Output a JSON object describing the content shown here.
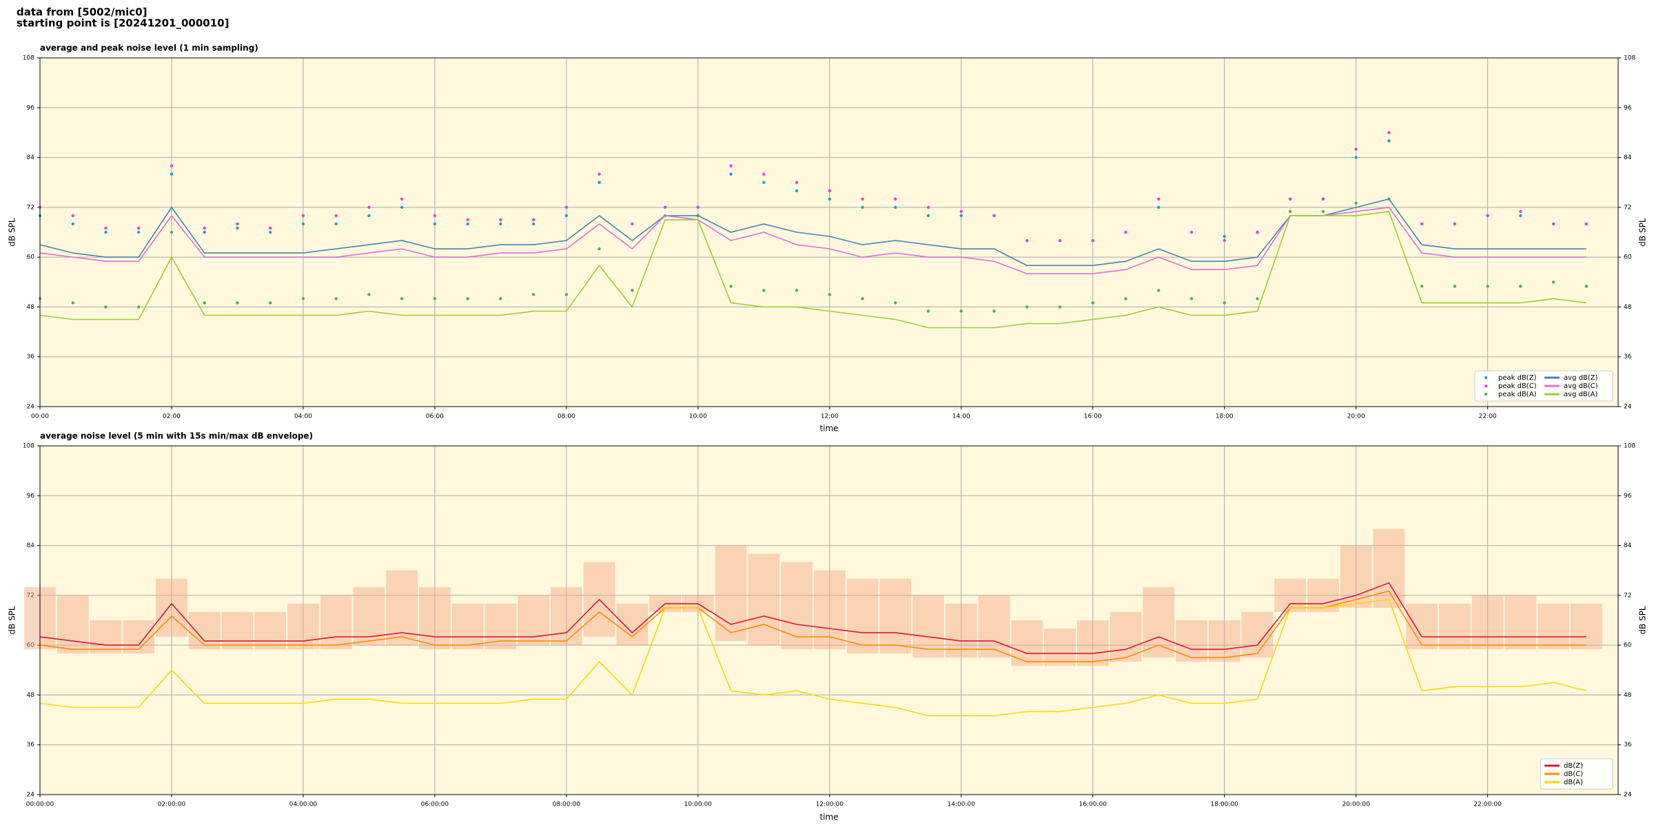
{
  "header": {
    "lines": [
      "data from [5002/mic0]",
      "starting point is [20241201_000010]"
    ]
  },
  "chart_data": [
    {
      "type": "line",
      "title": "average and peak noise level (1 min sampling)",
      "xlabel": "time",
      "ylabel": "dB SPL",
      "background": "#fff8dc",
      "grid": true,
      "legend": "lower right",
      "legend_columns": 2,
      "xlim": [
        "00:00",
        "23:59"
      ],
      "xticks": [
        "00:00",
        "02:00",
        "04:00",
        "06:00",
        "08:00",
        "10:00",
        "12:00",
        "14:00",
        "16:00",
        "18:00",
        "20:00",
        "22:00"
      ],
      "ylim": [
        24,
        108
      ],
      "yticks": [
        24,
        36,
        48,
        60,
        72,
        84,
        96,
        108
      ],
      "x": [
        "00:00",
        "00:30",
        "01:00",
        "01:30",
        "02:00",
        "02:30",
        "03:00",
        "03:30",
        "04:00",
        "04:30",
        "05:00",
        "05:30",
        "06:00",
        "06:30",
        "07:00",
        "07:30",
        "08:00",
        "08:30",
        "09:00",
        "09:30",
        "10:00",
        "10:30",
        "11:00",
        "11:30",
        "12:00",
        "12:30",
        "13:00",
        "13:30",
        "14:00",
        "14:30",
        "15:00",
        "15:30",
        "16:00",
        "16:30",
        "17:00",
        "17:30",
        "18:00",
        "18:30",
        "19:00",
        "19:30",
        "20:00",
        "20:30",
        "21:00",
        "21:30",
        "22:00",
        "22:30",
        "23:00",
        "23:30"
      ],
      "series": [
        {
          "name": "peak dB(Z)",
          "style": "scatter",
          "color": "#1f9bd6",
          "values": [
            70,
            68,
            66,
            66,
            80,
            66,
            67,
            66,
            68,
            68,
            70,
            72,
            68,
            68,
            68,
            68,
            70,
            78,
            68,
            72,
            72,
            80,
            78,
            76,
            74,
            72,
            72,
            70,
            70,
            70,
            64,
            64,
            64,
            66,
            72,
            66,
            65,
            66,
            74,
            74,
            84,
            88,
            68,
            68,
            70,
            70,
            68,
            68
          ]
        },
        {
          "name": "peak dB(C)",
          "style": "scatter",
          "color": "#e040e0",
          "values": [
            72,
            70,
            67,
            67,
            82,
            67,
            68,
            67,
            70,
            70,
            72,
            74,
            70,
            69,
            69,
            69,
            72,
            80,
            68,
            72,
            72,
            82,
            80,
            78,
            76,
            74,
            74,
            72,
            71,
            70,
            64,
            64,
            64,
            66,
            74,
            66,
            64,
            66,
            74,
            74,
            86,
            90,
            68,
            68,
            70,
            71,
            68,
            68
          ]
        },
        {
          "name": "peak dB(A)",
          "style": "scatter",
          "color": "#4caf50",
          "values": [
            50,
            49,
            48,
            48,
            66,
            49,
            49,
            49,
            50,
            50,
            51,
            50,
            50,
            50,
            50,
            51,
            51,
            62,
            52,
            70,
            70,
            53,
            52,
            52,
            51,
            50,
            49,
            47,
            47,
            47,
            48,
            48,
            49,
            50,
            52,
            50,
            49,
            50,
            71,
            71,
            73,
            74,
            53,
            53,
            53,
            53,
            54,
            53
          ]
        },
        {
          "name": "avg dB(Z)",
          "style": "line",
          "color": "#4682b4",
          "values": [
            63,
            61,
            60,
            60,
            72,
            61,
            61,
            61,
            61,
            62,
            63,
            64,
            62,
            62,
            63,
            63,
            64,
            70,
            64,
            70,
            70,
            66,
            68,
            66,
            65,
            63,
            64,
            63,
            62,
            62,
            58,
            58,
            58,
            59,
            62,
            59,
            59,
            60,
            70,
            70,
            72,
            74,
            63,
            62,
            62,
            62,
            62,
            62
          ]
        },
        {
          "name": "avg dB(C)",
          "style": "line",
          "color": "#da70d6",
          "values": [
            61,
            60,
            59,
            59,
            70,
            60,
            60,
            60,
            60,
            60,
            61,
            62,
            60,
            60,
            61,
            61,
            62,
            68,
            62,
            70,
            69,
            64,
            66,
            63,
            62,
            60,
            61,
            60,
            60,
            59,
            56,
            56,
            56,
            57,
            60,
            57,
            57,
            58,
            70,
            70,
            71,
            72,
            61,
            60,
            60,
            60,
            60,
            60
          ]
        },
        {
          "name": "avg dB(A)",
          "style": "line",
          "color": "#9acd32",
          "values": [
            46,
            45,
            45,
            45,
            60,
            46,
            46,
            46,
            46,
            46,
            47,
            46,
            46,
            46,
            46,
            47,
            47,
            58,
            48,
            69,
            69,
            49,
            48,
            48,
            47,
            46,
            45,
            43,
            43,
            43,
            44,
            44,
            45,
            46,
            48,
            46,
            46,
            47,
            70,
            70,
            70,
            71,
            49,
            49,
            49,
            49,
            50,
            49
          ]
        }
      ]
    },
    {
      "type": "line",
      "title": "average noise level (5 min with 15s min/max dB envelope)",
      "xlabel": "time",
      "ylabel": "dB SPL",
      "background": "#fff8dc",
      "grid": true,
      "legend": "lower right",
      "legend_columns": 1,
      "xlim": [
        "00:00:00",
        "23:59:00"
      ],
      "xticks": [
        "00:00:00",
        "02:00:00",
        "04:00:00",
        "06:00:00",
        "08:00:00",
        "10:00:00",
        "12:00:00",
        "14:00:00",
        "16:00:00",
        "18:00:00",
        "20:00:00",
        "22:00:00"
      ],
      "ylim": [
        24,
        108
      ],
      "yticks": [
        24,
        36,
        48,
        60,
        72,
        84,
        96,
        108
      ],
      "x": [
        "00:00:00",
        "00:30:00",
        "01:00:00",
        "01:30:00",
        "02:00:00",
        "02:30:00",
        "03:00:00",
        "03:30:00",
        "04:00:00",
        "04:30:00",
        "05:00:00",
        "05:30:00",
        "06:00:00",
        "06:30:00",
        "07:00:00",
        "07:30:00",
        "08:00:00",
        "08:30:00",
        "09:00:00",
        "09:30:00",
        "10:00:00",
        "10:30:00",
        "11:00:00",
        "11:30:00",
        "12:00:00",
        "12:30:00",
        "13:00:00",
        "13:30:00",
        "14:00:00",
        "14:30:00",
        "15:00:00",
        "15:30:00",
        "16:00:00",
        "16:30:00",
        "17:00:00",
        "17:30:00",
        "18:00:00",
        "18:30:00",
        "19:00:00",
        "19:30:00",
        "20:00:00",
        "20:30:00",
        "21:00:00",
        "21:30:00",
        "22:00:00",
        "22:30:00",
        "23:00:00",
        "23:30:00"
      ],
      "envelope": {
        "color": "#f4a582",
        "lower": [
          59,
          58,
          58,
          58,
          62,
          59,
          59,
          59,
          59,
          59,
          60,
          60,
          59,
          59,
          59,
          60,
          60,
          62,
          60,
          68,
          68,
          61,
          60,
          59,
          59,
          58,
          58,
          57,
          57,
          57,
          55,
          55,
          55,
          56,
          57,
          56,
          56,
          57,
          68,
          68,
          69,
          69,
          59,
          59,
          59,
          59,
          59,
          59
        ],
        "upper": [
          74,
          72,
          66,
          66,
          76,
          68,
          68,
          68,
          70,
          72,
          74,
          78,
          74,
          70,
          70,
          72,
          74,
          80,
          70,
          72,
          72,
          84,
          82,
          80,
          78,
          76,
          76,
          72,
          70,
          72,
          66,
          64,
          66,
          68,
          74,
          66,
          66,
          68,
          76,
          76,
          84,
          88,
          70,
          70,
          72,
          72,
          70,
          70
        ]
      },
      "series": [
        {
          "name": "dB(Z)",
          "style": "line",
          "color": "#dc143c",
          "values": [
            62,
            61,
            60,
            60,
            70,
            61,
            61,
            61,
            61,
            62,
            62,
            63,
            62,
            62,
            62,
            62,
            63,
            71,
            63,
            70,
            70,
            65,
            67,
            65,
            64,
            63,
            63,
            62,
            61,
            61,
            58,
            58,
            58,
            59,
            62,
            59,
            59,
            60,
            70,
            70,
            72,
            75,
            62,
            62,
            62,
            62,
            62,
            62
          ]
        },
        {
          "name": "dB(C)",
          "style": "line",
          "color": "#ff8c00",
          "values": [
            60,
            59,
            59,
            59,
            67,
            60,
            60,
            60,
            60,
            60,
            61,
            62,
            60,
            60,
            61,
            61,
            61,
            68,
            62,
            69,
            69,
            63,
            65,
            62,
            62,
            60,
            60,
            59,
            59,
            59,
            56,
            56,
            56,
            57,
            60,
            57,
            57,
            58,
            69,
            69,
            71,
            73,
            60,
            60,
            60,
            60,
            60,
            60
          ]
        },
        {
          "name": "dB(A)",
          "style": "line",
          "color": "#ffd700",
          "values": [
            46,
            45,
            45,
            45,
            54,
            46,
            46,
            46,
            46,
            47,
            47,
            46,
            46,
            46,
            46,
            47,
            47,
            56,
            48,
            69,
            69,
            49,
            48,
            49,
            47,
            46,
            45,
            43,
            43,
            43,
            44,
            44,
            45,
            46,
            48,
            46,
            46,
            47,
            69,
            69,
            70,
            71,
            49,
            50,
            50,
            50,
            51,
            49
          ]
        }
      ]
    }
  ]
}
